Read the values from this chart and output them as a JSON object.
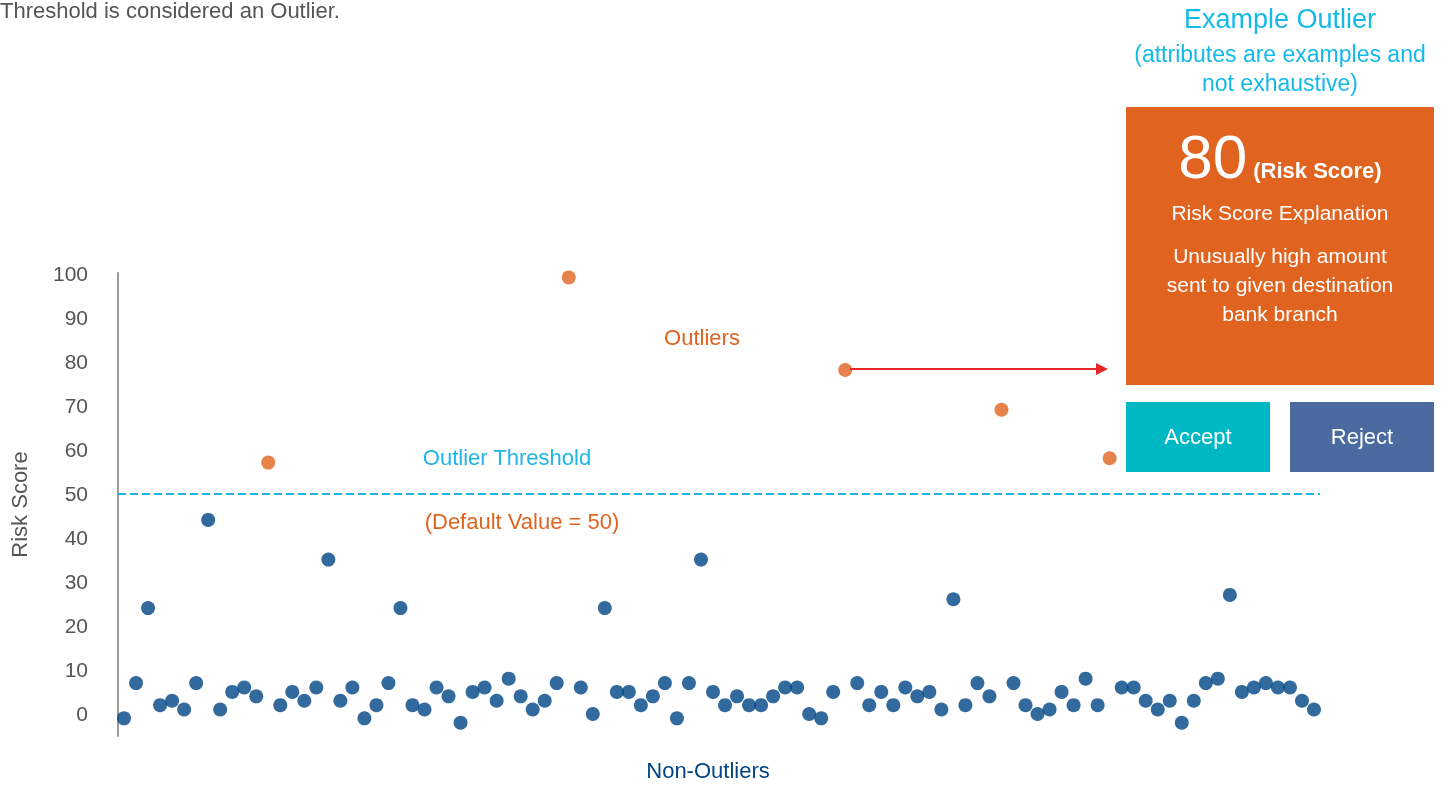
{
  "chart_data": [
    {
      "type": "scatter",
      "ylabel": "Risk Score",
      "ylim": [
        -5,
        100
      ],
      "yticks": [
        0,
        10,
        20,
        30,
        40,
        50,
        60,
        70,
        80,
        90,
        100
      ],
      "grid": false,
      "legend": false,
      "marker": "circle",
      "tick_labels": "y",
      "categories": [
        null,
        null,
        null,
        null,
        null,
        null,
        null,
        null,
        null,
        null,
        null,
        null,
        null,
        null,
        null,
        null,
        null,
        null,
        null,
        null,
        null,
        null,
        null,
        null,
        null,
        null,
        null,
        null,
        null,
        null,
        null,
        null,
        null,
        null,
        null,
        null,
        null,
        null,
        null,
        null,
        null,
        null,
        null,
        null,
        null,
        null,
        null,
        null,
        null,
        null,
        null,
        null,
        null,
        null,
        null,
        null,
        null,
        null,
        null,
        null,
        null,
        null,
        null,
        null,
        null,
        null,
        null,
        null,
        null,
        null,
        null,
        null,
        null,
        null,
        null,
        null,
        null,
        null,
        null,
        null,
        null,
        null,
        null,
        null,
        null,
        null,
        null,
        null,
        null,
        null,
        null,
        null,
        null,
        null,
        null,
        null,
        null,
        null,
        null,
        null
      ],
      "series": [
        {
          "name": "Non-Outliers",
          "color": "#004585",
          "values": [
            -1,
            7,
            24,
            2,
            3,
            1,
            7,
            44,
            1,
            5,
            6,
            4,
            null,
            2,
            5,
            3,
            6,
            35,
            3,
            6,
            -1,
            2,
            7,
            24,
            2,
            1,
            6,
            4,
            -2,
            5,
            6,
            3,
            8,
            4,
            1,
            3,
            7,
            null,
            6,
            0,
            24,
            5,
            5,
            2,
            4,
            7,
            -1,
            7,
            35,
            5,
            2,
            4,
            2,
            2,
            4,
            6,
            6,
            0,
            -1,
            5,
            null,
            7,
            2,
            5,
            2,
            6,
            4,
            5,
            1,
            26,
            2,
            7,
            4,
            null,
            7,
            2,
            0,
            1,
            5,
            2,
            8,
            2,
            null,
            6,
            6,
            3,
            1,
            3,
            -2,
            3,
            7,
            8,
            27,
            5,
            6,
            7,
            6,
            6,
            3,
            1
          ]
        },
        {
          "name": "Outliers",
          "color": "#e06420",
          "values": [
            null,
            null,
            null,
            null,
            null,
            null,
            null,
            null,
            null,
            null,
            null,
            null,
            57,
            null,
            null,
            null,
            null,
            null,
            null,
            null,
            null,
            null,
            null,
            null,
            null,
            null,
            null,
            null,
            null,
            null,
            null,
            null,
            null,
            null,
            null,
            null,
            null,
            99,
            null,
            null,
            null,
            null,
            null,
            null,
            null,
            null,
            null,
            null,
            null,
            null,
            null,
            null,
            null,
            null,
            null,
            null,
            null,
            null,
            null,
            null,
            78,
            null,
            null,
            null,
            null,
            null,
            null,
            null,
            null,
            null,
            null,
            null,
            null,
            69,
            null,
            null,
            null,
            null,
            null,
            null,
            null,
            null,
            58,
            null,
            null,
            null,
            null,
            null,
            null,
            null,
            null,
            null,
            null,
            null,
            null,
            null,
            null,
            null,
            null,
            null
          ]
        }
      ],
      "ref_lines": [
        {
          "axis": "y",
          "value": 50,
          "label": "Outlier Threshold",
          "color": "#1fb5e8",
          "line_style": "dashed"
        }
      ],
      "annotations": [
        "(Default Value = 50)",
        "Threshold is considered an Outlier."
      ]
    },
    {
      "type": "other",
      "title": "Example Outlier",
      "subtitle": "(attributes are examples and not exhaustive)",
      "annotations": [
        "80",
        "(Risk Score)",
        "Risk Score Explanation",
        "Unusually high amount sent  to given destination bank branch",
        "Accept",
        "Reject"
      ]
    }
  ]
}
